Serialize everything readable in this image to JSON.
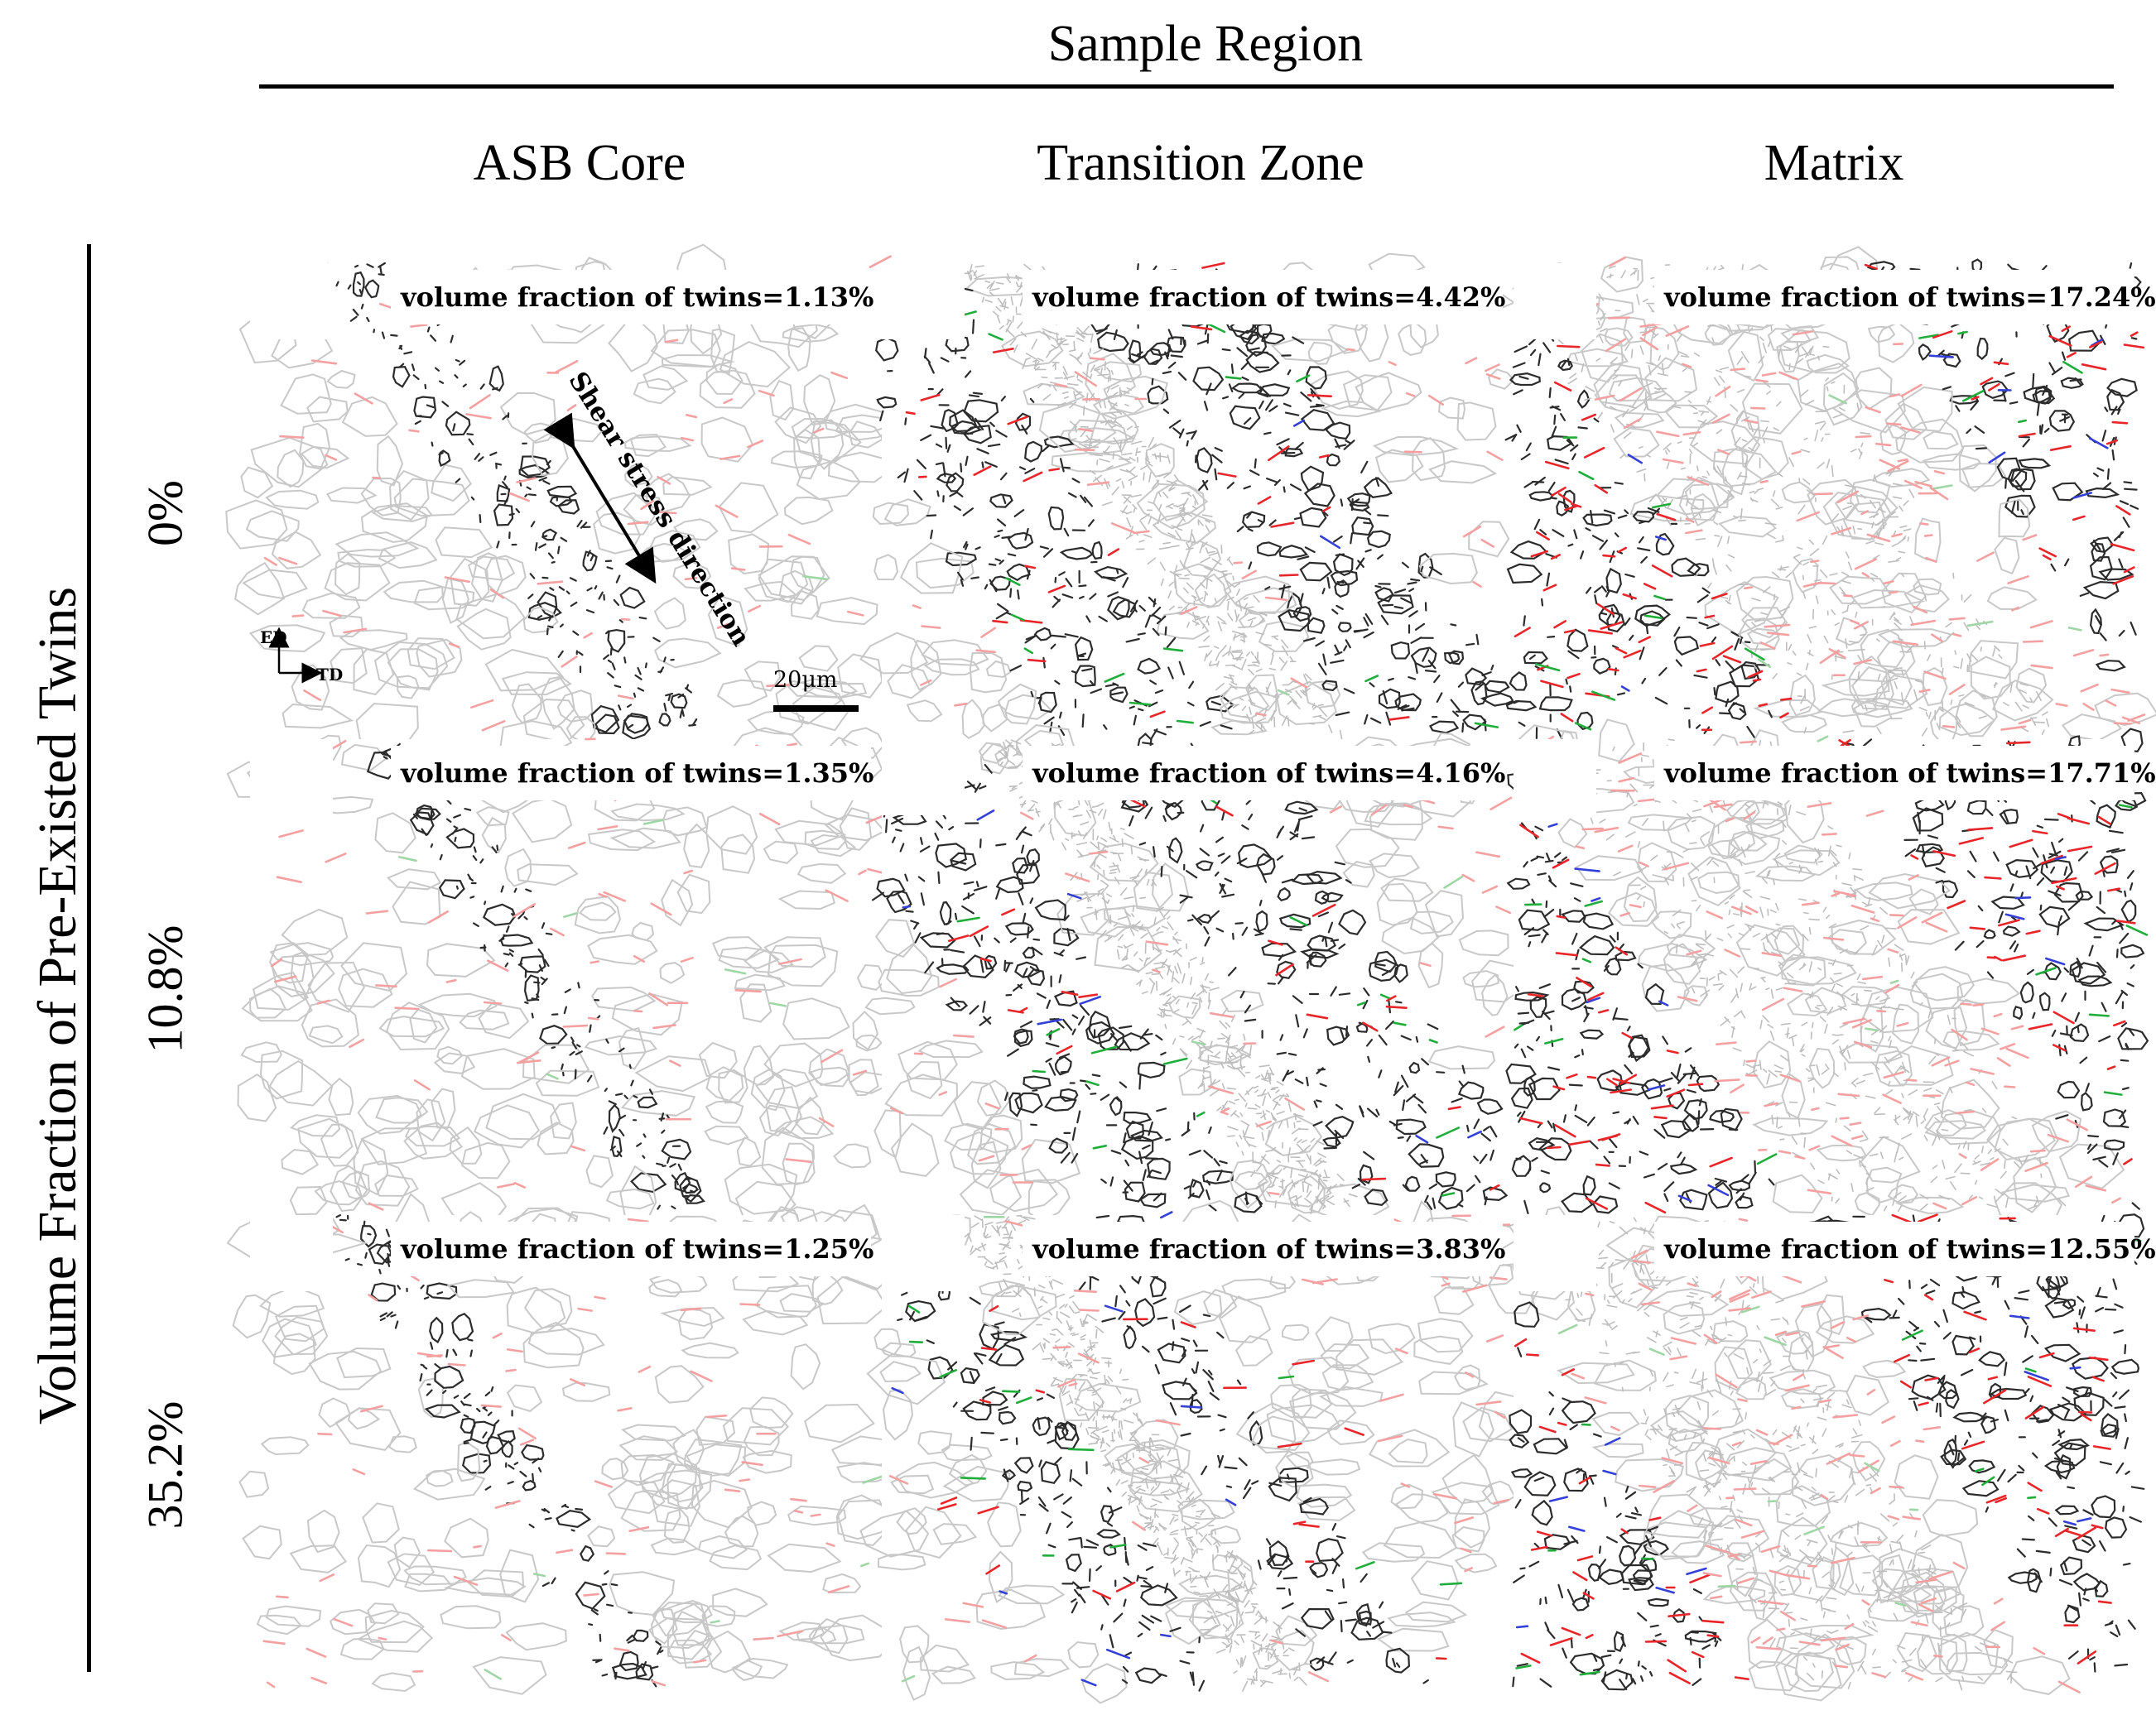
{
  "header": {
    "title": "Sample Region"
  },
  "columns": [
    "ASB Core",
    "Transition Zone",
    "Matrix"
  ],
  "y_axis_title": "Volume Fraction of Pre-Existed Twins",
  "rows": [
    "0%",
    "10.8%",
    "35.2%"
  ],
  "panels": [
    [
      "volume fraction of twins=1.13%",
      "volume fraction of twins=4.42%",
      "volume fraction of twins=17.24%"
    ],
    [
      "volume fraction of twins=1.35%",
      "volume fraction of twins=4.16%",
      "volume fraction of twins=17.71%"
    ],
    [
      "volume fraction of twins=1.25%",
      "volume fraction of twins=3.83%",
      "volume fraction of twins=12.55%"
    ]
  ],
  "annotations": {
    "shear_arrow": "Shear stress direction",
    "axis_ed": "ED",
    "axis_td": "TD",
    "scale_bar": "20μm"
  },
  "colors": {
    "grain_boundary_light": "#c8c8c8",
    "grain_boundary_dark": "#2b2b2b",
    "twin_red": "#e8262a",
    "twin_green": "#1fae3a",
    "twin_blue": "#3340d8",
    "light_red": "#f4a0a0"
  }
}
